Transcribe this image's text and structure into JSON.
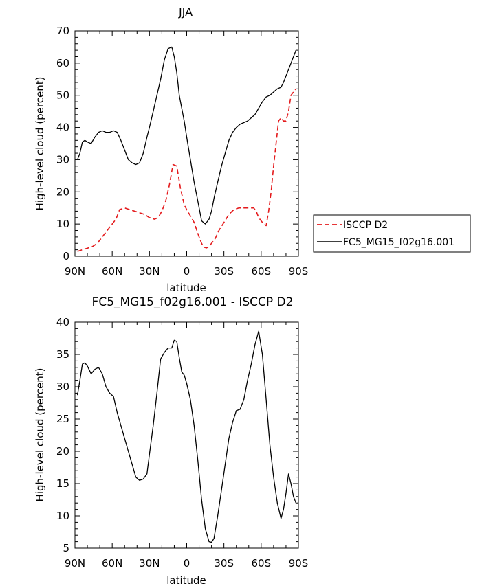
{
  "chart_data": [
    {
      "type": "line",
      "title": "JJA",
      "xlabel": "latitude",
      "ylabel": "High-level cloud (percent)",
      "xlim": [
        90,
        -90
      ],
      "ylim": [
        0,
        70
      ],
      "x_ticks": [
        {
          "value": 90,
          "label": "90N"
        },
        {
          "value": 60,
          "label": "60N"
        },
        {
          "value": 30,
          "label": "30N"
        },
        {
          "value": 0,
          "label": "0"
        },
        {
          "value": -30,
          "label": "30S"
        },
        {
          "value": -60,
          "label": "60S"
        },
        {
          "value": -90,
          "label": "90S"
        }
      ],
      "y_ticks": [
        0,
        10,
        20,
        30,
        40,
        50,
        60,
        70
      ],
      "grid": false,
      "legend_placement": "right of plot",
      "series": [
        {
          "name": "ISCCP D2",
          "color": "#e41a1c",
          "dash": "dashed",
          "x": [
            88,
            84,
            80,
            76,
            72,
            68,
            64,
            60,
            57,
            54,
            50,
            46,
            42,
            38,
            34,
            30,
            26,
            23,
            20,
            17,
            14,
            11,
            8,
            5,
            2,
            0,
            -3,
            -6,
            -9,
            -12,
            -14,
            -16,
            -18,
            -20,
            -23,
            -26,
            -30,
            -34,
            -38,
            -42,
            -46,
            -50,
            -54,
            -56,
            -58,
            -60,
            -62,
            -64,
            -66,
            -68,
            -70,
            -72,
            -74,
            -76,
            -78,
            -80,
            -82,
            -84,
            -86,
            -88
          ],
          "values": [
            1.5,
            2,
            2.5,
            3,
            4,
            6,
            8,
            10,
            11.5,
            14.5,
            15,
            14.5,
            14,
            13.5,
            13,
            12,
            11.5,
            12,
            14,
            17,
            22,
            28.5,
            28,
            21,
            16,
            14.5,
            12.5,
            10.5,
            7,
            4,
            2.8,
            2.6,
            3,
            4,
            5.5,
            8,
            10.5,
            13,
            14.5,
            15,
            15,
            15,
            15,
            14,
            12,
            11,
            10,
            9.5,
            14,
            20,
            28,
            35,
            42,
            43,
            42,
            42,
            45,
            50,
            51,
            52
          ]
        },
        {
          "name": "FC5_MG15_f02g16.001",
          "color": "#000000",
          "dash": "solid",
          "x": [
            88,
            86,
            84,
            82,
            80,
            77,
            74,
            71,
            68,
            65,
            62,
            59,
            56,
            53,
            50,
            47,
            44,
            41,
            38,
            35,
            32,
            30,
            27,
            24,
            21,
            18,
            15,
            12,
            10,
            8,
            6,
            4,
            2,
            0,
            -3,
            -6,
            -9,
            -12,
            -15,
            -18,
            -20,
            -22,
            -25,
            -28,
            -31,
            -34,
            -37,
            -40,
            -43,
            -46,
            -49,
            -52,
            -55,
            -58,
            -61,
            -64,
            -67,
            -70,
            -73,
            -76,
            -78,
            -80,
            -82,
            -84,
            -86,
            -88
          ],
          "values": [
            30,
            32,
            35.5,
            36,
            35.5,
            35,
            37,
            38.5,
            39,
            38.5,
            38.5,
            39,
            38.5,
            36,
            33,
            30,
            29,
            28.5,
            29,
            32,
            37,
            40,
            45,
            50,
            55,
            61,
            64.5,
            65,
            62,
            57,
            50,
            46,
            42,
            37,
            30,
            23,
            17,
            11,
            10,
            11.5,
            14,
            18,
            23,
            28,
            32,
            36,
            38.5,
            40,
            41,
            41.5,
            42,
            43,
            44,
            46,
            48,
            49.5,
            50,
            51,
            52,
            52.5,
            54,
            56,
            58,
            60,
            62,
            64
          ]
        }
      ]
    },
    {
      "type": "line",
      "title": "FC5_MG15_f02g16.001 - ISCCP D2",
      "xlabel": "latitude",
      "ylabel": "High-level cloud (percent)",
      "xlim": [
        90,
        -90
      ],
      "ylim": [
        5,
        40
      ],
      "x_ticks": [
        {
          "value": 90,
          "label": "90N"
        },
        {
          "value": 60,
          "label": "60N"
        },
        {
          "value": 30,
          "label": "30N"
        },
        {
          "value": 0,
          "label": "0"
        },
        {
          "value": -30,
          "label": "30S"
        },
        {
          "value": -60,
          "label": "60S"
        },
        {
          "value": -90,
          "label": "90S"
        }
      ],
      "y_ticks": [
        5,
        10,
        15,
        20,
        25,
        30,
        35,
        40
      ],
      "grid": false,
      "series": [
        {
          "color": "#000000",
          "dash": "solid",
          "x": [
            88,
            86,
            84,
            82,
            80,
            77,
            74,
            71,
            68,
            65,
            62,
            59,
            56,
            53,
            50,
            47,
            44,
            41,
            38,
            35,
            32,
            30,
            27,
            24,
            21,
            18,
            15,
            12,
            10,
            8,
            6,
            4,
            2,
            0,
            -3,
            -6,
            -9,
            -12,
            -15,
            -18,
            -20,
            -22,
            -25,
            -28,
            -31,
            -34,
            -37,
            -40,
            -43,
            -46,
            -49,
            -52,
            -55,
            -58,
            -61,
            -64,
            -67,
            -70,
            -73,
            -76,
            -78,
            -80,
            -82,
            -84,
            -86,
            -88
          ],
          "values": [
            28.7,
            31,
            33.5,
            33.7,
            33.2,
            32,
            32.7,
            33,
            32,
            30,
            29,
            28.5,
            26,
            24,
            22,
            20,
            18,
            16,
            15.5,
            15.7,
            16.5,
            19.5,
            24,
            29,
            34.3,
            35.3,
            36,
            36,
            37.2,
            37,
            34.5,
            32.3,
            31.8,
            30.5,
            28,
            24,
            18.5,
            12.5,
            8,
            6,
            5.9,
            6.5,
            10,
            14,
            18,
            22,
            24.5,
            26.3,
            26.5,
            28,
            31,
            33.5,
            36.5,
            38.6,
            35,
            28,
            21,
            16,
            12,
            9.6,
            11,
            13.5,
            16.5,
            15,
            13,
            12
          ]
        }
      ]
    }
  ]
}
